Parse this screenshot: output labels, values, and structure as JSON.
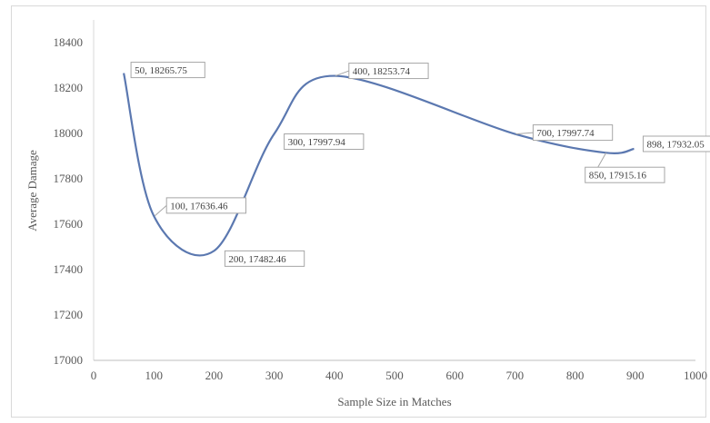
{
  "chart_data": {
    "type": "line",
    "title": "",
    "xlabel": "Sample Size in Matches",
    "ylabel": "Average Damage",
    "xlim": [
      0,
      1000
    ],
    "ylim": [
      17000,
      18400
    ],
    "x_ticks": [
      "0",
      "100",
      "200",
      "300",
      "400",
      "500",
      "600",
      "700",
      "800",
      "900",
      "1000"
    ],
    "y_ticks": [
      "17000",
      "17200",
      "17400",
      "17600",
      "17800",
      "18000",
      "18200",
      "18400"
    ],
    "grid": false,
    "legend": "none",
    "smooth": true,
    "line_color": "#5b78b0",
    "series": [
      {
        "x": [
          50,
          100,
          200,
          300,
          400,
          700,
          850,
          898
        ],
        "y": [
          18265.75,
          17636.46,
          17482.46,
          17997.94,
          18253.74,
          17997.74,
          17915.16,
          17932.05
        ]
      }
    ],
    "data_labels": [
      "50, 18265.75",
      "100, 17636.46",
      "200, 17482.46",
      "300, 17997.94",
      "400, 18253.74",
      "700, 17997.74",
      "850, 17915.16",
      "898, 17932.05"
    ]
  }
}
